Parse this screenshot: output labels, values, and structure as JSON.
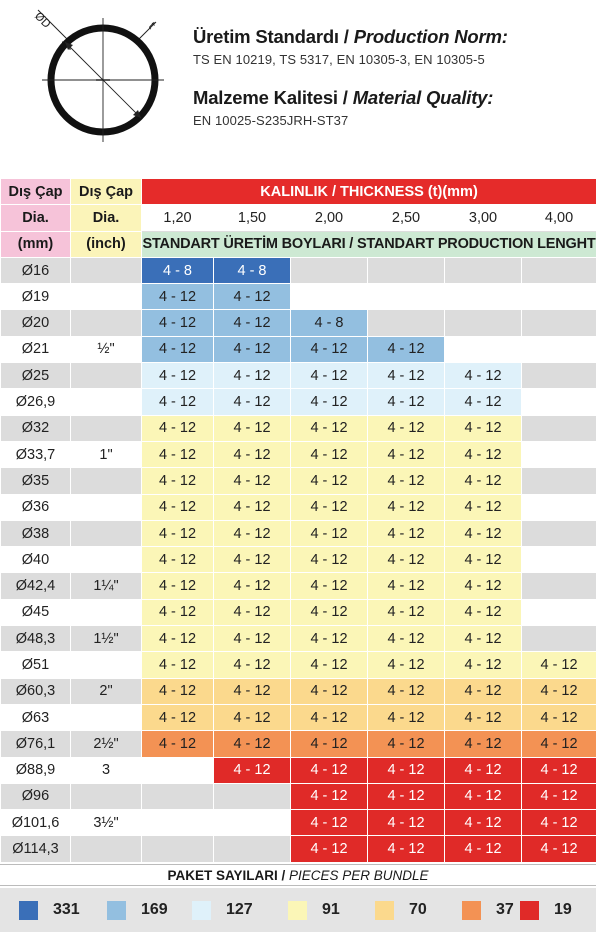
{
  "diagram": {
    "od_label": "ØD",
    "t_label": "t"
  },
  "production": {
    "title_tr": "Üretim Standardı / ",
    "title_en": "Production Norm:",
    "values": "TS EN 10219, TS 5317, EN 10305-3, EN 10305-5"
  },
  "material": {
    "title_tr": "Malzeme Kalitesi / ",
    "title_en": "Material Quality:",
    "values": "EN 10025-S235JRH-ST37"
  },
  "table": {
    "col1_header": [
      "Dış Çap",
      "Dia.",
      "(mm)"
    ],
    "col2_header": [
      "Dış Çap",
      "Dia.",
      "(inch)"
    ],
    "thickness_header": "KALINLIK / THICKNESS (t)(mm)",
    "thicknesses": [
      "1,20",
      "1,50",
      "2,00",
      "2,50",
      "3,00",
      "4,00"
    ],
    "lengths_header": "STANDART ÜRETİM BOYLARI / STANDART PRODUCTION LENGHT",
    "rows": [
      {
        "dia": "Ø16",
        "inch": "",
        "cells": [
          "4 - 8",
          "4 - 8",
          "",
          "",
          "",
          ""
        ]
      },
      {
        "dia": "Ø19",
        "inch": "",
        "cells": [
          "4 - 12",
          "4 - 12",
          "",
          "",
          "",
          ""
        ]
      },
      {
        "dia": "Ø20",
        "inch": "",
        "cells": [
          "4 - 12",
          "4 - 12",
          "4 - 8",
          "",
          "",
          ""
        ]
      },
      {
        "dia": "Ø21",
        "inch": "½\"",
        "cells": [
          "4 - 12",
          "4 - 12",
          "4 - 12",
          "4 - 12",
          "",
          ""
        ]
      },
      {
        "dia": "Ø25",
        "inch": "",
        "cells": [
          "4 - 12",
          "4 - 12",
          "4 - 12",
          "4 - 12",
          "4 - 12",
          ""
        ]
      },
      {
        "dia": "Ø26,9",
        "inch": "",
        "cells": [
          "4 - 12",
          "4 - 12",
          "4 - 12",
          "4 - 12",
          "4 - 12",
          ""
        ]
      },
      {
        "dia": "Ø32",
        "inch": "",
        "cells": [
          "4 - 12",
          "4 - 12",
          "4 - 12",
          "4 - 12",
          "4 - 12",
          ""
        ]
      },
      {
        "dia": "Ø33,7",
        "inch": "1\"",
        "cells": [
          "4 - 12",
          "4 - 12",
          "4 - 12",
          "4 - 12",
          "4 - 12",
          ""
        ]
      },
      {
        "dia": "Ø35",
        "inch": "",
        "cells": [
          "4 - 12",
          "4 - 12",
          "4 - 12",
          "4 - 12",
          "4 - 12",
          ""
        ]
      },
      {
        "dia": "Ø36",
        "inch": "",
        "cells": [
          "4 - 12",
          "4 - 12",
          "4 - 12",
          "4 - 12",
          "4 - 12",
          ""
        ]
      },
      {
        "dia": "Ø38",
        "inch": "",
        "cells": [
          "4 - 12",
          "4 - 12",
          "4 - 12",
          "4 - 12",
          "4 - 12",
          ""
        ]
      },
      {
        "dia": "Ø40",
        "inch": "",
        "cells": [
          "4 - 12",
          "4 - 12",
          "4 - 12",
          "4 - 12",
          "4 - 12",
          ""
        ]
      },
      {
        "dia": "Ø42,4",
        "inch": "1¼\"",
        "cells": [
          "4 - 12",
          "4 - 12",
          "4 - 12",
          "4 - 12",
          "4 - 12",
          ""
        ]
      },
      {
        "dia": "Ø45",
        "inch": "",
        "cells": [
          "4 - 12",
          "4 - 12",
          "4 - 12",
          "4 - 12",
          "4 - 12",
          ""
        ]
      },
      {
        "dia": "Ø48,3",
        "inch": "1½\"",
        "cells": [
          "4 - 12",
          "4 - 12",
          "4 - 12",
          "4 - 12",
          "4 - 12",
          ""
        ]
      },
      {
        "dia": "Ø51",
        "inch": "",
        "cells": [
          "4 - 12",
          "4 - 12",
          "4 - 12",
          "4 - 12",
          "4 - 12",
          "4 - 12"
        ]
      },
      {
        "dia": "Ø60,3",
        "inch": "2\"",
        "cells": [
          "4 - 12",
          "4 - 12",
          "4 - 12",
          "4 - 12",
          "4 - 12",
          "4 - 12"
        ]
      },
      {
        "dia": "Ø63",
        "inch": "",
        "cells": [
          "4 - 12",
          "4 - 12",
          "4 - 12",
          "4 - 12",
          "4 - 12",
          "4 - 12"
        ]
      },
      {
        "dia": "Ø76,1",
        "inch": "2½\"",
        "cells": [
          "4 - 12",
          "4 - 12",
          "4 - 12",
          "4 - 12",
          "4 - 12",
          "4 - 12"
        ]
      },
      {
        "dia": "Ø88,9",
        "inch": "3",
        "cells": [
          "",
          "4 - 12",
          "4 - 12",
          "4 - 12",
          "4 - 12",
          "4 - 12"
        ]
      },
      {
        "dia": "Ø96",
        "inch": "",
        "cells": [
          "",
          "",
          "4 - 12",
          "4 - 12",
          "4 - 12",
          "4 - 12"
        ]
      },
      {
        "dia": "Ø101,6",
        "inch": "3½\"",
        "cells": [
          "",
          "",
          "4 - 12",
          "4 - 12",
          "4 - 12",
          "4 - 12"
        ]
      },
      {
        "dia": "Ø114,3",
        "inch": "",
        "cells": [
          "",
          "",
          "4 - 12",
          "4 - 12",
          "4 - 12",
          "4 - 12"
        ]
      }
    ]
  },
  "bundle": {
    "title_tr": "PAKET SAYILARI / ",
    "title_en": "PIECES PER BUNDLE",
    "items": [
      {
        "color": "#3a6fb8",
        "value": "331"
      },
      {
        "color": "#93bfe0",
        "value": "169"
      },
      {
        "color": "#dff1fa",
        "value": "127"
      },
      {
        "color": "#fbf6b7",
        "value": "91"
      },
      {
        "color": "#fbd98d",
        "value": "70"
      },
      {
        "color": "#f39254",
        "value": "37"
      },
      {
        "color": "#e02a28",
        "value": "19"
      }
    ]
  }
}
